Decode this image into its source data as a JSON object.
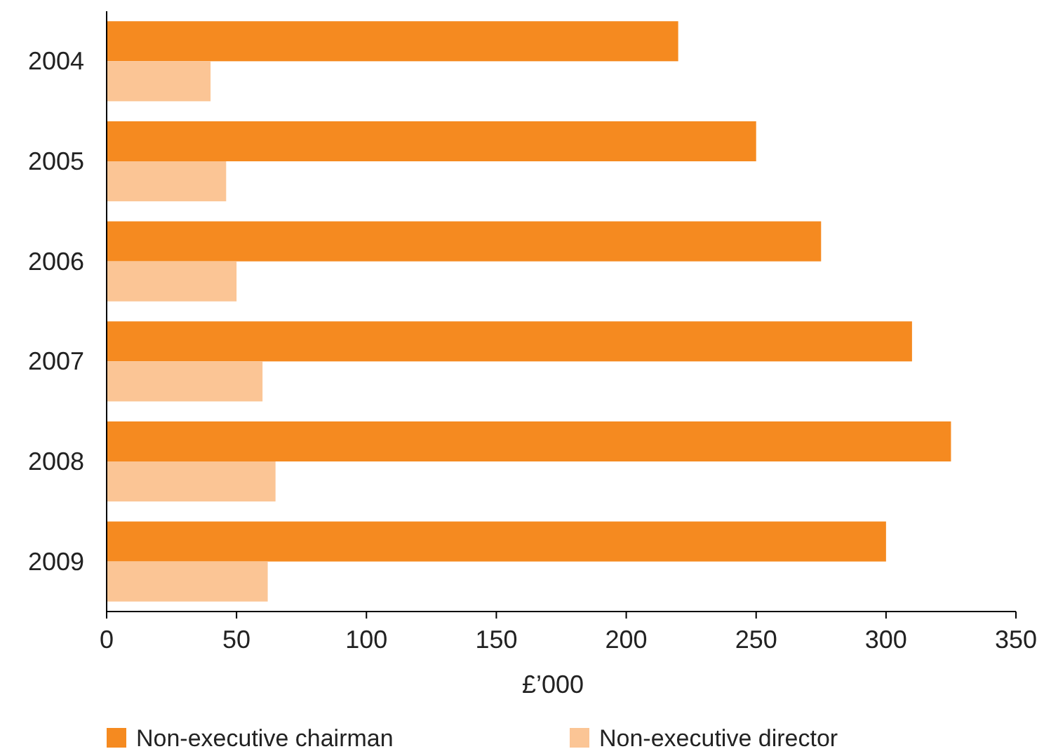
{
  "chart_data": {
    "type": "bar",
    "orientation": "horizontal",
    "categories": [
      "2004",
      "2005",
      "2006",
      "2007",
      "2008",
      "2009"
    ],
    "series": [
      {
        "name": "Non-executive chairman",
        "color": "#f58a20",
        "values": [
          220,
          250,
          275,
          310,
          325,
          300
        ]
      },
      {
        "name": "Non-executive director",
        "color": "#fbc595",
        "values": [
          40,
          46,
          50,
          60,
          65,
          62
        ]
      }
    ],
    "xlabel": "£’000",
    "xlim": [
      0,
      350
    ],
    "xticks": [
      0,
      50,
      100,
      150,
      200,
      250,
      300,
      350
    ],
    "grid": false,
    "legend": "bottom"
  }
}
